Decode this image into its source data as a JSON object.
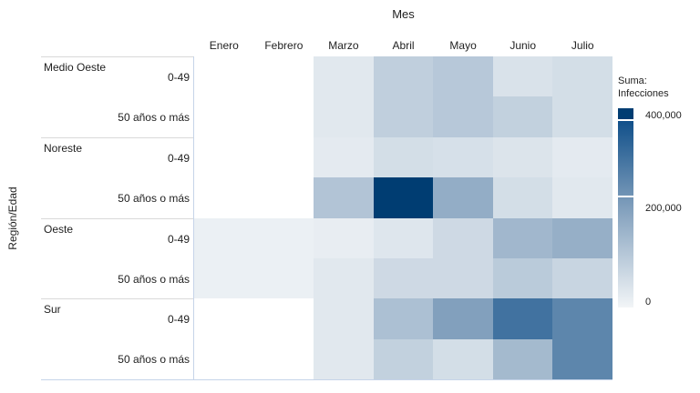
{
  "title": "Mes",
  "y_axis_title": "Región/Edad",
  "row_headers": {
    "regions": [
      "Medio Oeste",
      "Noreste",
      "Oeste",
      "Sur"
    ],
    "age_labels": [
      "0-49",
      "50 años o más"
    ]
  },
  "legend": {
    "title_line1": "Suma:",
    "title_line2": "Infecciones",
    "tick_max": "400,000",
    "tick_mid": "200,000",
    "tick_min": "0"
  },
  "chart_data": {
    "type": "heatmap",
    "title": "Mes",
    "xlabel": "Mes",
    "ylabel": "Región/Edad",
    "x": [
      "Enero",
      "Febrero",
      "Marzo",
      "Abril",
      "Mayo",
      "Junio",
      "Julio"
    ],
    "rows": [
      {
        "region": "Medio Oeste",
        "age": "0-49",
        "values": [
          null,
          null,
          30000,
          90000,
          105000,
          45000,
          55000
        ]
      },
      {
        "region": "Medio Oeste",
        "age": "50 años o más",
        "values": [
          null,
          null,
          30000,
          90000,
          105000,
          85000,
          55000
        ]
      },
      {
        "region": "Noreste",
        "age": "0-49",
        "values": [
          null,
          null,
          25000,
          55000,
          50000,
          40000,
          25000
        ]
      },
      {
        "region": "Noreste",
        "age": "50 años o más",
        "values": [
          null,
          null,
          115000,
          430000,
          170000,
          55000,
          30000
        ]
      },
      {
        "region": "Oeste",
        "age": "0-49",
        "values": [
          12000,
          12000,
          18000,
          35000,
          65000,
          145000,
          165000
        ]
      },
      {
        "region": "Oeste",
        "age": "50 años o más",
        "values": [
          12000,
          12000,
          30000,
          65000,
          65000,
          100000,
          75000
        ]
      },
      {
        "region": "Sur",
        "age": "0-49",
        "values": [
          null,
          null,
          30000,
          125000,
          200000,
          315000,
          265000
        ]
      },
      {
        "region": "Sur",
        "age": "50 años o más",
        "values": [
          null,
          null,
          30000,
          85000,
          55000,
          140000,
          265000
        ]
      }
    ],
    "color_scale": {
      "measure": "Suma: Infecciones",
      "stops": [
        [
          0,
          "#f2f5f7"
        ],
        [
          200000,
          "#82a0bd"
        ],
        [
          400000,
          "#11508a"
        ]
      ],
      "above_max_color": "#003d72",
      "no_data_color": "#ffffff",
      "legend_ticks": [
        400000,
        200000,
        0
      ],
      "legend_position": "right"
    }
  }
}
